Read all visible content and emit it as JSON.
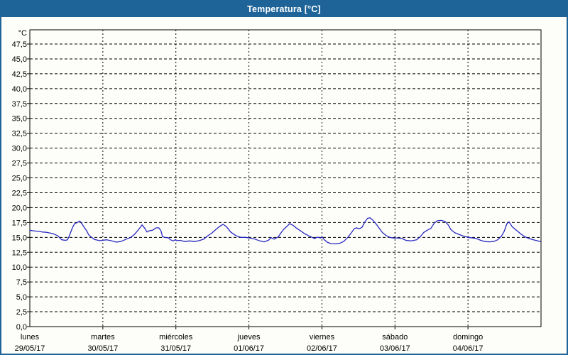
{
  "window": {
    "title": "Temperatura [°C]",
    "colors": {
      "titlebar": "#1e6499",
      "border": "#1e6499",
      "background": "#fdfdfa",
      "grid": "#000000",
      "text": "#000000"
    }
  },
  "chart_data": {
    "type": "line",
    "title": "Temperatura [°C]",
    "xlabel": "",
    "ylabel": "",
    "y_unit_label": "°C",
    "ylim": [
      0,
      49.9
    ],
    "y_tick_step": 2.5,
    "y_ticks": [
      {
        "label": "47,5",
        "value": 47.5
      },
      {
        "label": "45,0",
        "value": 45.0
      },
      {
        "label": "42,5",
        "value": 42.5
      },
      {
        "label": "40,0",
        "value": 40.0
      },
      {
        "label": "37,5",
        "value": 37.5
      },
      {
        "label": "35,0",
        "value": 35.0
      },
      {
        "label": "32,5",
        "value": 32.5
      },
      {
        "label": "30,0",
        "value": 30.0
      },
      {
        "label": "27,5",
        "value": 27.5
      },
      {
        "label": "25,0",
        "value": 25.0
      },
      {
        "label": "22,5",
        "value": 22.5
      },
      {
        "label": "20,0",
        "value": 20.0
      },
      {
        "label": "17,5",
        "value": 17.5
      },
      {
        "label": "15,0",
        "value": 15.0
      },
      {
        "label": "12,5",
        "value": 12.5
      },
      {
        "label": "10,0",
        "value": 10.0
      },
      {
        "label": "7,5",
        "value": 7.5
      },
      {
        "label": "5,0",
        "value": 5.0
      },
      {
        "label": "2,5",
        "value": 2.5
      },
      {
        "label": "0,0",
        "value": 0.0
      }
    ],
    "grid": "dashed",
    "legend": "none",
    "x_range_hours": [
      0,
      168
    ],
    "x_days": [
      {
        "name": "lunes",
        "date": "29/05/17"
      },
      {
        "name": "martes",
        "date": "30/05/17"
      },
      {
        "name": "miércoles",
        "date": "31/05/17"
      },
      {
        "name": "jueves",
        "date": "01/06/17"
      },
      {
        "name": "viernes",
        "date": "02/06/17"
      },
      {
        "name": "sábado",
        "date": "03/06/17"
      },
      {
        "name": "domingo",
        "date": "04/06/17"
      }
    ],
    "series": [
      {
        "name": "Temperatura",
        "color": "#2828c0",
        "x_hours": [
          0,
          1.2,
          3,
          4.2,
          5.5,
          7,
          8,
          9.3,
          10.5,
          11.7,
          12.4,
          13.1,
          14,
          14.7,
          15.6,
          16.4,
          17,
          18,
          18.7,
          19.4,
          20.1,
          21.2,
          22.9,
          24,
          25.2,
          26.6,
          28.4,
          29.9,
          31.7,
          33.2,
          34.4,
          35.4,
          36.3,
          36.9,
          37.8,
          38.5,
          39.2,
          40.3,
          41.5,
          42.4,
          43.1,
          43.6,
          44.8,
          45.5,
          46.2,
          47.1,
          47.8,
          48.3,
          49.5,
          50.9,
          52.5,
          54.1,
          55.7,
          57.2,
          58.3,
          60,
          61.3,
          62.5,
          63.5,
          64.6,
          66,
          67.7,
          69.3,
          70.9,
          72.3,
          74,
          75.6,
          77,
          78.4,
          79.3,
          80.3,
          81.7,
          82.6,
          83.5,
          84.6,
          85.4,
          86.6,
          87.5,
          88.7,
          90.1,
          91.5,
          92.6,
          93.6,
          94.5,
          95.5,
          96.1,
          96.8,
          97.7,
          98.9,
          100.6,
          101.8,
          103.1,
          104.5,
          105.7,
          106.6,
          107.3,
          108.3,
          109.2,
          110.1,
          111,
          111.8,
          112.7,
          113.9,
          115,
          115.9,
          117.1,
          118.3,
          119.4,
          120.8,
          122.4,
          123.6,
          125.3,
          127.1,
          128.3,
          129.4,
          130.6,
          131.8,
          132.9,
          133.9,
          135.2,
          136.4,
          137.5,
          138.4,
          139.6,
          141,
          142.6,
          144,
          145.6,
          146.8,
          148.2,
          149.6,
          151,
          152.4,
          153.8,
          155,
          155.9,
          156.8,
          157.5,
          158.5,
          159.9,
          161.3,
          162.7,
          164.1,
          165.5,
          166.6,
          167.8
        ],
        "values": [
          16.2,
          16.1,
          16,
          15.9,
          15.85,
          15.7,
          15.55,
          15.2,
          14.6,
          14.5,
          14.6,
          15.4,
          16.6,
          17.3,
          17.5,
          17.75,
          17.35,
          16.6,
          16.1,
          15.4,
          15.1,
          14.65,
          14.45,
          14.5,
          14.6,
          14.45,
          14.2,
          14.3,
          14.7,
          15,
          15.5,
          16.1,
          16.7,
          17.1,
          16.5,
          15.9,
          16.1,
          16.2,
          16.6,
          16.6,
          16.1,
          15.1,
          14.95,
          14.95,
          14.6,
          14.4,
          14.6,
          14.45,
          14.5,
          14.3,
          14.4,
          14.3,
          14.45,
          14.7,
          15.2,
          15.8,
          16.4,
          16.9,
          17.2,
          16.8,
          15.9,
          15.3,
          15,
          15,
          14.9,
          14.7,
          14.4,
          14.25,
          14.5,
          14.95,
          14.7,
          15.1,
          15.8,
          16.4,
          16.9,
          17.3,
          17,
          16.6,
          16.2,
          15.7,
          15.3,
          15.05,
          14.8,
          15.05,
          14.9,
          15.05,
          14.6,
          14.2,
          13.95,
          13.9,
          14,
          14.3,
          15,
          15.8,
          16.45,
          16.6,
          16.45,
          16.7,
          17.6,
          18.2,
          18.3,
          17.9,
          17.2,
          16.4,
          15.8,
          15.3,
          15,
          14.9,
          14.9,
          14.8,
          14.5,
          14.4,
          14.6,
          15.1,
          15.8,
          16.2,
          16.5,
          17.4,
          17.8,
          17.85,
          17.7,
          17.1,
          16.3,
          15.8,
          15.5,
          15.2,
          15,
          14.9,
          14.8,
          14.5,
          14.3,
          14.25,
          14.3,
          14.6,
          15.2,
          16,
          17.3,
          17.6,
          16.8,
          16.2,
          15.6,
          15.1,
          14.8,
          14.6,
          14.45,
          14.3
        ]
      }
    ]
  }
}
